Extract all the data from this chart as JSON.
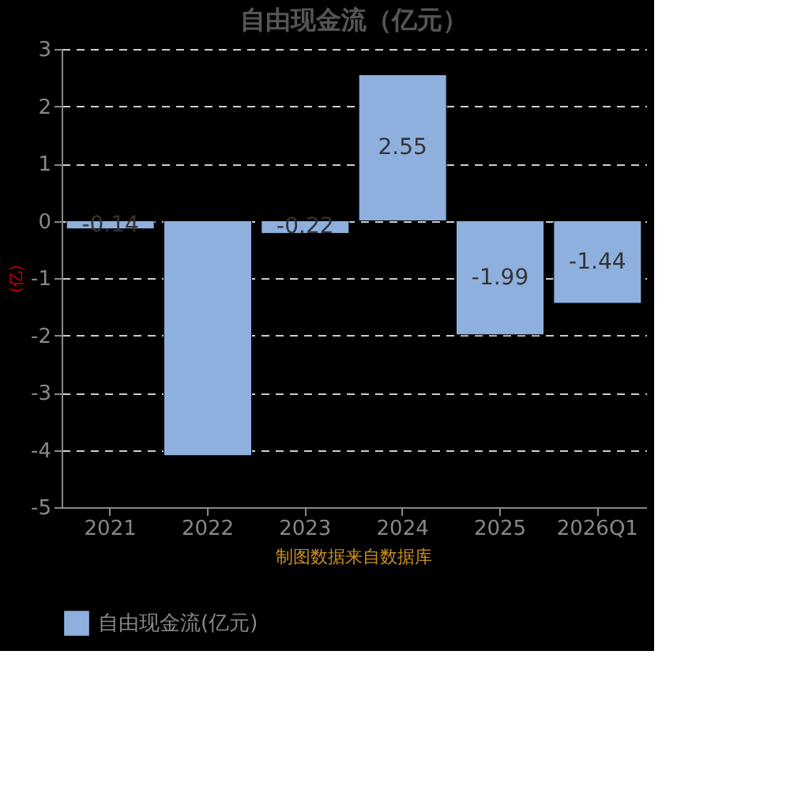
{
  "chart_data": {
    "type": "bar",
    "title": "自由现金流（亿元）",
    "ylabel": "(亿)",
    "categories": [
      "2021",
      "2022",
      "2023",
      "2024",
      "2025",
      "2026Q1"
    ],
    "series": [
      {
        "name": "自由现金流(亿元)",
        "color": "#8eb0de",
        "values": [
          -0.14,
          -4.1,
          -0.22,
          2.55,
          -1.99,
          -1.44
        ],
        "value_labels": [
          "-0.14",
          null,
          "-0.22",
          "2.55",
          "-1.99",
          "-1.44"
        ]
      }
    ],
    "ylim": [
      -5,
      3
    ],
    "yticks": [
      -5,
      -4,
      -3,
      -2,
      -1,
      0,
      1,
      2,
      3
    ],
    "grid": "y",
    "legend": "bottom",
    "annotations": [
      "制图数据来自数据库"
    ]
  }
}
